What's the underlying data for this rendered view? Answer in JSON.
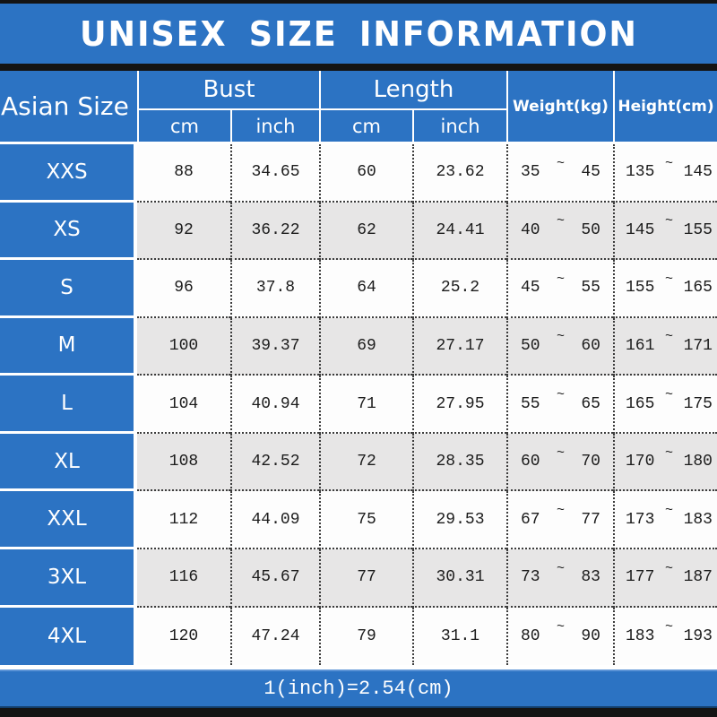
{
  "title": "UNISEX SIZE INFORMATION",
  "footer_note": "1(inch)=2.54(cm)",
  "colors": {
    "accent_blue": "#2c73c3",
    "alt_row_gray": "#e7e6e6",
    "bar_black": "#141414",
    "dotted_line": "#3c3c3c",
    "text_on_blue": "#ffffff",
    "data_text": "#1c1c1c"
  },
  "table": {
    "size_header": "Asian Size",
    "tilde": "~",
    "groups": [
      {
        "label": "Bust",
        "sub": [
          "cm",
          "inch"
        ]
      },
      {
        "label": "Length",
        "sub": [
          "cm",
          "inch"
        ]
      }
    ],
    "single_headers": [
      "Weight(kg)",
      "Height(cm)"
    ],
    "rows": [
      {
        "size": "XXS",
        "bust_cm": "88",
        "bust_inch": "34.65",
        "length_cm": "60",
        "length_inch": "23.62",
        "weight_min": "35",
        "weight_max": "45",
        "height_min": "135",
        "height_max": "145"
      },
      {
        "size": "XS",
        "bust_cm": "92",
        "bust_inch": "36.22",
        "length_cm": "62",
        "length_inch": "24.41",
        "weight_min": "40",
        "weight_max": "50",
        "height_min": "145",
        "height_max": "155"
      },
      {
        "size": "S",
        "bust_cm": "96",
        "bust_inch": "37.8",
        "length_cm": "64",
        "length_inch": "25.2",
        "weight_min": "45",
        "weight_max": "55",
        "height_min": "155",
        "height_max": "165"
      },
      {
        "size": "M",
        "bust_cm": "100",
        "bust_inch": "39.37",
        "length_cm": "69",
        "length_inch": "27.17",
        "weight_min": "50",
        "weight_max": "60",
        "height_min": "161",
        "height_max": "171"
      },
      {
        "size": "L",
        "bust_cm": "104",
        "bust_inch": "40.94",
        "length_cm": "71",
        "length_inch": "27.95",
        "weight_min": "55",
        "weight_max": "65",
        "height_min": "165",
        "height_max": "175"
      },
      {
        "size": "XL",
        "bust_cm": "108",
        "bust_inch": "42.52",
        "length_cm": "72",
        "length_inch": "28.35",
        "weight_min": "60",
        "weight_max": "70",
        "height_min": "170",
        "height_max": "180"
      },
      {
        "size": "XXL",
        "bust_cm": "112",
        "bust_inch": "44.09",
        "length_cm": "75",
        "length_inch": "29.53",
        "weight_min": "67",
        "weight_max": "77",
        "height_min": "173",
        "height_max": "183"
      },
      {
        "size": "3XL",
        "bust_cm": "116",
        "bust_inch": "45.67",
        "length_cm": "77",
        "length_inch": "30.31",
        "weight_min": "73",
        "weight_max": "83",
        "height_min": "177",
        "height_max": "187"
      },
      {
        "size": "4XL",
        "bust_cm": "120",
        "bust_inch": "47.24",
        "length_cm": "79",
        "length_inch": "31.1",
        "weight_min": "80",
        "weight_max": "90",
        "height_min": "183",
        "height_max": "193"
      }
    ]
  }
}
